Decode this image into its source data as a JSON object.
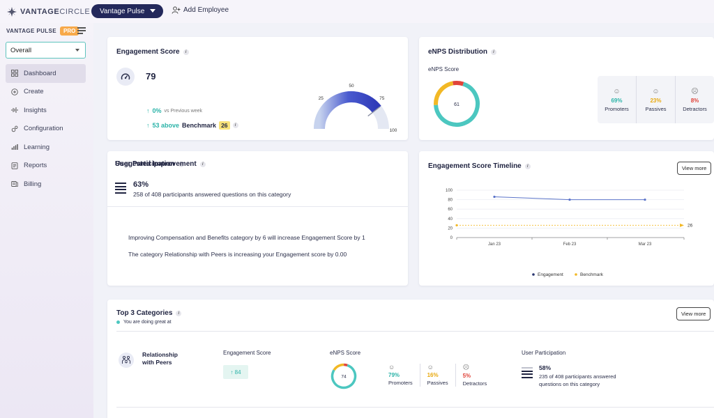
{
  "brand": {
    "name_bold": "VANTAGE",
    "name_light": "CIRCLE"
  },
  "topbar": {
    "product_button": "Vantage Pulse",
    "add_employee": "Add Employee"
  },
  "sidebar": {
    "section_label": "VANTAGE PULSE",
    "pro_badge": "PRO",
    "filter_selected": "Overall",
    "items": [
      {
        "label": "Dashboard",
        "icon": "grid-icon",
        "active": true
      },
      {
        "label": "Create",
        "icon": "plus-circle-icon"
      },
      {
        "label": "Insights",
        "icon": "waveform-icon"
      },
      {
        "label": "Configuration",
        "icon": "gears-icon"
      },
      {
        "label": "Learning",
        "icon": "bar-chart-icon"
      },
      {
        "label": "Reports",
        "icon": "document-icon"
      },
      {
        "label": "Billing",
        "icon": "billing-icon"
      }
    ]
  },
  "engagement": {
    "title": "Engagement Score",
    "score": "79",
    "week_change": "0%",
    "week_label": "vs Previous week",
    "bench_diff": "53 above",
    "bench_label": "Benchmark",
    "bench_value": "26",
    "gauge": {
      "value": 79,
      "min": 0,
      "max": 100,
      "ticks": [
        "0",
        "25",
        "50",
        "75",
        "100"
      ]
    }
  },
  "enps": {
    "title": "eNPS Distribution",
    "score_label": "eNPS Score",
    "score": "61",
    "promoters": {
      "pct": "69%",
      "label": "Promoters",
      "value": 69,
      "color": "#4cc7c0"
    },
    "passives": {
      "pct": "23%",
      "label": "Passives",
      "value": 23,
      "color": "#f2b825"
    },
    "detractors": {
      "pct": "8%",
      "label": "Detractors",
      "value": 8,
      "color": "#e0443a"
    }
  },
  "participation": {
    "title": "User Participation",
    "pct": "63%",
    "desc": "258 of 408 participants answered questions on this category"
  },
  "suggestions": {
    "title": "Suggested Improvement",
    "items": [
      "Improving Compensation and Benefits category by 6 will increase Engagement Score by 1",
      "The category Relationship with Peers is increasing your Engagement score by 0.00"
    ]
  },
  "timeline": {
    "title": "Engagement Score Timeline",
    "view_more": "View more"
  },
  "chart_data": {
    "type": "line",
    "categories": [
      "Jan 23",
      "Feb 23",
      "Mar 23"
    ],
    "series": [
      {
        "name": "Engagement",
        "values": [
          86,
          80,
          80
        ],
        "color": "#5b74c9"
      },
      {
        "name": "Benchmark",
        "values": [
          26,
          26,
          26
        ],
        "color": "#f2b825",
        "end_label": "26"
      }
    ],
    "ylim": [
      0,
      100
    ],
    "yticks": [
      "0",
      "20",
      "40",
      "60",
      "80",
      "100"
    ],
    "grid": true,
    "legend": "bottom"
  },
  "top3": {
    "title": "Top 3 Categories",
    "subtitle": "You are doing great at",
    "view_more": "View more",
    "category": {
      "name_line1": "Relationship",
      "name_line2": "with Peers",
      "eng_label": "Engagement Score",
      "eng_value": "↑ 84",
      "enps_label": "eNPS Score",
      "enps_score": "74",
      "promoters": {
        "pct": "79%",
        "label": "Promoters",
        "value": 79
      },
      "passives": {
        "pct": "16%",
        "label": "Passives",
        "value": 16
      },
      "detractors": {
        "pct": "5%",
        "label": "Detractors",
        "value": 5
      },
      "part_label": "User Participation",
      "part_pct": "58%",
      "part_desc": "235 of 408 participants answered questions on this category"
    }
  }
}
